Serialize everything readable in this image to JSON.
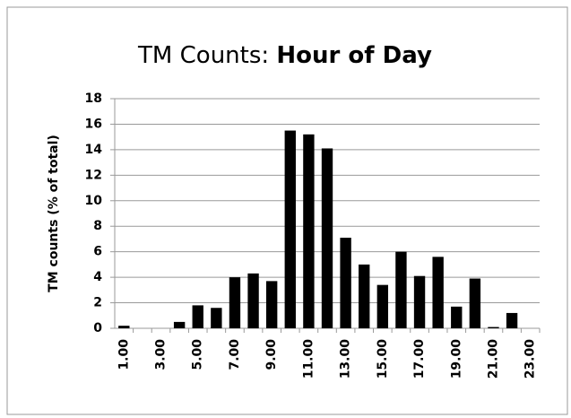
{
  "chart_data": {
    "type": "bar",
    "title": "TM Counts:",
    "title_bold": "Hour of Day",
    "y_label": "TM counts (% of total)",
    "categories": [
      "1.00",
      null,
      "3.00",
      null,
      "5.00",
      null,
      "7.00",
      null,
      "9.00",
      null,
      "11.00",
      null,
      "13.00",
      null,
      "15.00",
      null,
      "17.00",
      null,
      "19.00",
      null,
      "21.00",
      null,
      "23.00"
    ],
    "values": [
      0.2,
      0,
      0,
      0.5,
      1.8,
      1.6,
      4.0,
      4.3,
      3.7,
      15.5,
      15.2,
      14.1,
      7.1,
      5.0,
      3.4,
      6.0,
      4.1,
      5.6,
      1.7,
      3.9,
      0.1,
      1.2,
      0
    ],
    "color": "#000000",
    "ylim": [
      0,
      18
    ],
    "yticks": [
      0,
      2,
      4,
      6,
      8,
      10,
      12,
      14,
      16,
      18
    ],
    "grid": true
  }
}
